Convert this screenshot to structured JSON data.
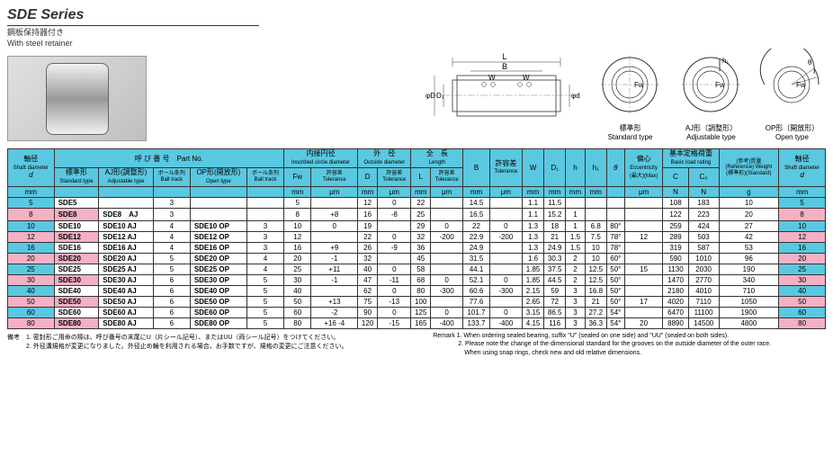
{
  "title": "SDE Series",
  "subtitle_jp": "鋼板保持器付き",
  "subtitle_en": "With steel retainer",
  "diag_labels": {
    "std_jp": "標準形",
    "std_en": "Standard type",
    "aj_jp": "AJ形（調整形）",
    "aj_en": "Adjustable type",
    "op_jp": "OP形（開放形）",
    "op_en": "Open type"
  },
  "headers": {
    "d_jp": "軸径",
    "d_en": "Shaft diameter",
    "d_sym": "d",
    "mm": "mm",
    "um": "μm",
    "partno_jp": "呼 び 番 号",
    "partno_en": "Part No.",
    "std_jp": "標準形",
    "std_en": "Standard type",
    "aj_jp": "AJ形(調整形)",
    "aj_en": "Adjustable type",
    "ball_jp": "ボール条列",
    "ball_en": "Ball track",
    "op_jp": "OP形(開放形)",
    "op_en": "Open type",
    "fw_jp": "内接円径",
    "fw_en": "Inscribed circle diameter",
    "fw_sym": "Fw",
    "od_jp": "外　径",
    "od_en": "Outside diameter",
    "od_sym": "D",
    "tol_jp": "許容差",
    "tol_en": "Tolerance",
    "len_jp": "全　長",
    "len_en": "Length",
    "len_sym": "L",
    "b_sym": "B",
    "w_sym": "W",
    "d1_sym": "D₁",
    "h_sym": "h",
    "h1_sym": "h₁",
    "theta": "θ",
    "ecc_jp": "偏心",
    "ecc_en": "Eccentricity",
    "ecc_max": "(最大)(Max)",
    "load_jp": "基本定格荷重",
    "load_en": "Basic load rating",
    "c_sym": "C",
    "co_sym": "C₀",
    "n": "N",
    "wt_jp": "(参考)質量",
    "wt_en": "(Reference) Weight",
    "wt_std": "(標準形)(Standard)",
    "g": "g"
  },
  "rows": [
    {
      "d": "5",
      "std": "SDE5",
      "aj": "",
      "bt1": "3",
      "op": "",
      "bt2": "",
      "fw": "5",
      "fwt": "",
      "D": "12",
      "Dt": "0",
      "L": "22",
      "Lt": "",
      "B": "14.5",
      "Bt": "",
      "W": "1.1",
      "D1": "11.5",
      "h": "",
      "h1": "",
      "th": "",
      "ecc": "",
      "C": "108",
      "Co": "183",
      "wt": "10",
      "d2": "5",
      "hl": false
    },
    {
      "d": "8",
      "std": "SDE8",
      "aj": "SDE8　AJ",
      "bt1": "3",
      "op": "",
      "bt2": "",
      "fw": "8",
      "fwt": "+8",
      "D": "16",
      "Dt": "-8",
      "L": "25",
      "Lt": "",
      "B": "16.5",
      "Bt": "",
      "W": "1.1",
      "D1": "15.2",
      "h": "1",
      "h1": "",
      "th": "",
      "ecc": "",
      "C": "122",
      "Co": "223",
      "wt": "20",
      "d2": "8",
      "hl": true
    },
    {
      "d": "10",
      "std": "SDE10",
      "aj": "SDE10 AJ",
      "bt1": "4",
      "op": "SDE10 OP",
      "bt2": "3",
      "fw": "10",
      "fwt": "0",
      "D": "19",
      "Dt": "",
      "L": "29",
      "Lt": "0",
      "B": "22",
      "Bt": "0",
      "W": "1.3",
      "D1": "18",
      "h": "1",
      "h1": "6.8",
      "th": "80°",
      "ecc": "",
      "C": "259",
      "Co": "424",
      "wt": "27",
      "d2": "10",
      "hl": false
    },
    {
      "d": "12",
      "std": "SDE12",
      "aj": "SDE12 AJ",
      "bt1": "4",
      "op": "SDE12 OP",
      "bt2": "3",
      "fw": "12",
      "fwt": "",
      "D": "22",
      "Dt": "0",
      "L": "32",
      "Lt": "-200",
      "B": "22.9",
      "Bt": "-200",
      "W": "1.3",
      "D1": "21",
      "h": "1.5",
      "h1": "7.5",
      "th": "78°",
      "ecc": "12",
      "C": "289",
      "Co": "503",
      "wt": "42",
      "d2": "12",
      "hl": true
    },
    {
      "d": "16",
      "std": "SDE16",
      "aj": "SDE16 AJ",
      "bt1": "4",
      "op": "SDE16 OP",
      "bt2": "3",
      "fw": "16",
      "fwt": "+9",
      "D": "26",
      "Dt": "-9",
      "L": "36",
      "Lt": "",
      "B": "24.9",
      "Bt": "",
      "W": "1.3",
      "D1": "24.9",
      "h": "1.5",
      "h1": "10",
      "th": "78°",
      "ecc": "",
      "C": "319",
      "Co": "587",
      "wt": "53",
      "d2": "16",
      "hl": false
    },
    {
      "d": "20",
      "std": "SDE20",
      "aj": "SDE20 AJ",
      "bt1": "5",
      "op": "SDE20 OP",
      "bt2": "4",
      "fw": "20",
      "fwt": "-1",
      "D": "32",
      "Dt": "",
      "L": "45",
      "Lt": "",
      "B": "31.5",
      "Bt": "",
      "W": "1.6",
      "D1": "30.3",
      "h": "2",
      "h1": "10",
      "th": "60°",
      "ecc": "",
      "C": "590",
      "Co": "1010",
      "wt": "96",
      "d2": "20",
      "hl": true
    },
    {
      "d": "25",
      "std": "SDE25",
      "aj": "SDE25 AJ",
      "bt1": "5",
      "op": "SDE25 OP",
      "bt2": "4",
      "fw": "25",
      "fwt": "+11",
      "D": "40",
      "Dt": "0",
      "L": "58",
      "Lt": "",
      "B": "44.1",
      "Bt": "",
      "W": "1.85",
      "D1": "37.5",
      "h": "2",
      "h1": "12.5",
      "th": "50°",
      "ecc": "15",
      "C": "1130",
      "Co": "2030",
      "wt": "190",
      "d2": "25",
      "hl": false
    },
    {
      "d": "30",
      "std": "SDE30",
      "aj": "SDE30 AJ",
      "bt1": "6",
      "op": "SDE30 OP",
      "bt2": "5",
      "fw": "30",
      "fwt": "-1",
      "D": "47",
      "Dt": "-11",
      "L": "68",
      "Lt": "0",
      "B": "52.1",
      "Bt": "0",
      "W": "1.85",
      "D1": "44.5",
      "h": "2",
      "h1": "12.5",
      "th": "50°",
      "ecc": "",
      "C": "1470",
      "Co": "2770",
      "wt": "340",
      "d2": "30",
      "hl": true
    },
    {
      "d": "40",
      "std": "SDE40",
      "aj": "SDE40 AJ",
      "bt1": "6",
      "op": "SDE40 OP",
      "bt2": "5",
      "fw": "40",
      "fwt": "",
      "D": "62",
      "Dt": "0",
      "L": "80",
      "Lt": "-300",
      "B": "60.6",
      "Bt": "-300",
      "W": "2.15",
      "D1": "59",
      "h": "3",
      "h1": "16.8",
      "th": "50°",
      "ecc": "",
      "C": "2180",
      "Co": "4010",
      "wt": "710",
      "d2": "40",
      "hl": false
    },
    {
      "d": "50",
      "std": "SDE50",
      "aj": "SDE50 AJ",
      "bt1": "6",
      "op": "SDE50 OP",
      "bt2": "5",
      "fw": "50",
      "fwt": "+13",
      "D": "75",
      "Dt": "-13",
      "L": "100",
      "Lt": "",
      "B": "77.6",
      "Bt": "",
      "W": "2.65",
      "D1": "72",
      "h": "3",
      "h1": "21",
      "th": "50°",
      "ecc": "17",
      "C": "4020",
      "Co": "7110",
      "wt": "1050",
      "d2": "50",
      "hl": true
    },
    {
      "d": "60",
      "std": "SDE60",
      "aj": "SDE60 AJ",
      "bt1": "6",
      "op": "SDE60 OP",
      "bt2": "5",
      "fw": "60",
      "fwt": "-2",
      "D": "90",
      "Dt": "0",
      "L": "125",
      "Lt": "0",
      "B": "101.7",
      "Bt": "0",
      "W": "3.15",
      "D1": "86.5",
      "h": "3",
      "h1": "27.2",
      "th": "54°",
      "ecc": "",
      "C": "6470",
      "Co": "11100",
      "wt": "1900",
      "d2": "60",
      "hl": false
    },
    {
      "d": "80",
      "std": "SDE80",
      "aj": "SDE80 AJ",
      "bt1": "6",
      "op": "SDE80 OP",
      "bt2": "5",
      "fw": "80",
      "fwt": "+16 -4",
      "D": "120",
      "Dt": "-15",
      "L": "165",
      "Lt": "-400",
      "B": "133.7",
      "Bt": "-400",
      "W": "4.15",
      "D1": "116",
      "h": "3",
      "h1": "36.3",
      "th": "54°",
      "ecc": "20",
      "C": "8890",
      "Co": "14500",
      "wt": "4800",
      "d2": "80",
      "hl": true
    }
  ],
  "notes_l": "備考　1. 密封形ご用命の際は、呼び番号の末尾にU（片シール記号）、またはUU（両シール記号）をつけてください。\n　　　2. 外径溝規格が変更になりました。外径止め輪を利用される場合、お手数ですが、規格の変更にご注意ください。",
  "notes_r": "Remark 1. When ordering sealed bearing, suffix \"U\" (sealed on one side) and \"UU\" (sealed on both sides).\n　　　　2. Please note the change of the dimensional standard for the grooves on the outside diameter of the outer race.\n　　　　　When using snap rings, check new and old relative dimensions."
}
